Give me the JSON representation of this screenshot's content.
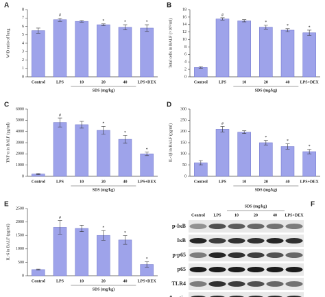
{
  "chart_data": [
    {
      "type": "bar",
      "label": "A",
      "ylabel": "W/D ratio of lung",
      "categories": [
        "Control",
        "LPS",
        "10",
        "20",
        "40",
        "LPS+DEX"
      ],
      "values": [
        5.5,
        6.8,
        6.6,
        6.2,
        5.9,
        5.8
      ],
      "errors": [
        0.3,
        0.2,
        0.1,
        0.1,
        0.3,
        0.4
      ],
      "annotations": [
        null,
        "#",
        null,
        "*",
        "*",
        "*"
      ],
      "xgroup_label": "SDS (mg/kg)",
      "color": "#9ea3ea",
      "ylim": [
        0,
        8
      ],
      "yticks": [
        0,
        1,
        2,
        3,
        4,
        5,
        6,
        7,
        8
      ]
    },
    {
      "type": "bar",
      "label": "B",
      "ylabel": "Total cells in BALF (×10⁵/ml)",
      "categories": [
        "Control",
        "LPS",
        "10",
        "20",
        "40",
        "LPS+DEX"
      ],
      "values": [
        2.5,
        15.5,
        15,
        13.3,
        12.5,
        11.8
      ],
      "errors": [
        0.2,
        0.3,
        0.3,
        0.5,
        0.4,
        0.7
      ],
      "annotations": [
        null,
        "#",
        null,
        "*",
        "*",
        "*"
      ],
      "xgroup_label": "SDS (mg/kg)",
      "color": "#9ea3ea",
      "ylim": [
        0,
        18
      ],
      "yticks": [
        0,
        2,
        4,
        6,
        8,
        10,
        12,
        14,
        16,
        18
      ]
    },
    {
      "type": "bar",
      "label": "C",
      "ylabel": "TNF-α in BALF (pg/ml)",
      "categories": [
        "Control",
        "LPS",
        "10",
        "20",
        "40",
        "LPS+DEX"
      ],
      "values": [
        200,
        4800,
        4600,
        4100,
        3300,
        2000
      ],
      "errors": [
        50,
        400,
        300,
        350,
        350,
        150
      ],
      "annotations": [
        null,
        "#",
        null,
        "*",
        "*",
        "*"
      ],
      "xgroup_label": "SDS (mg/kg)",
      "color": "#9ea3ea",
      "ylim": [
        0,
        6000
      ],
      "yticks": [
        0,
        1000,
        2000,
        3000,
        4000,
        5000,
        6000
      ]
    },
    {
      "type": "bar",
      "label": "D",
      "ylabel": "IL-1β in BALF (pg/ml)",
      "categories": [
        "Control",
        "LPS",
        "10",
        "20",
        "40",
        "LPS+DEX"
      ],
      "values": [
        60,
        210,
        197,
        150,
        133,
        110
      ],
      "errors": [
        10,
        12,
        6,
        10,
        12,
        10
      ],
      "annotations": [
        null,
        "#",
        null,
        "*",
        "*",
        "*"
      ],
      "xgroup_label": "SDS (mg/kg)",
      "color": "#9ea3ea",
      "ylim": [
        0,
        300
      ],
      "yticks": [
        0,
        50,
        100,
        150,
        200,
        250,
        300
      ]
    },
    {
      "type": "bar",
      "label": "E",
      "ylabel": "IL-6 in BALF (pg/ml)",
      "categories": [
        "Control",
        "LPS",
        "10",
        "20",
        "40",
        "LPS+DEX"
      ],
      "values": [
        230,
        1800,
        1760,
        1500,
        1330,
        420
      ],
      "errors": [
        20,
        250,
        120,
        180,
        160,
        100
      ],
      "annotations": [
        null,
        "#",
        null,
        "*",
        "*",
        "*"
      ],
      "xgroup_label": "SDS (mg/kg)",
      "color": "#9ea3ea",
      "ylim": [
        0,
        2500
      ],
      "yticks": [
        0,
        500,
        1000,
        1500,
        2000,
        2500
      ]
    }
  ],
  "blot": {
    "label": "F",
    "columns": [
      "Control",
      "LPS",
      "10",
      "20",
      "40",
      "LPS+DEX"
    ],
    "group_label": "SDS (mg/kg)",
    "rows": [
      "p-IκB",
      "IκB",
      "p-p65",
      "p65",
      "TLR4",
      "β-actin"
    ]
  }
}
